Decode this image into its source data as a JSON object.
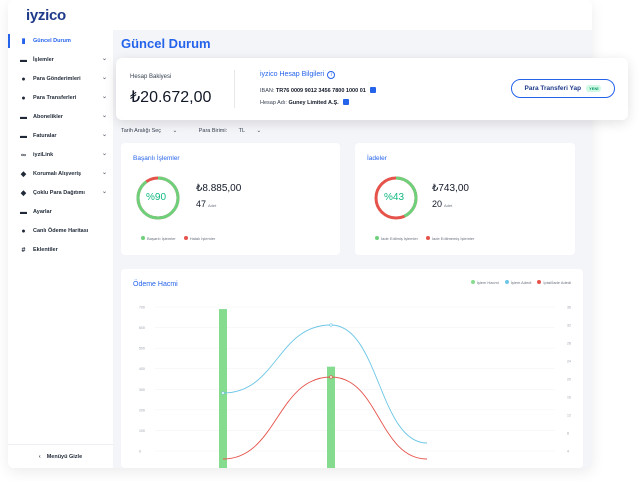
{
  "brand": {
    "logo_text": "iyzico"
  },
  "sidebar": {
    "items": [
      {
        "label": "Güncel Durum",
        "icon": "bar-chart-icon",
        "active": true,
        "has_chevron": false
      },
      {
        "label": "İşlemler",
        "icon": "card-icon",
        "active": false,
        "has_chevron": true
      },
      {
        "label": "Para Gönderimleri",
        "icon": "send-money-icon",
        "active": false,
        "has_chevron": true
      },
      {
        "label": "Para Transferleri",
        "icon": "transfer-icon",
        "active": false,
        "has_chevron": true
      },
      {
        "label": "Abonelikler",
        "icon": "subscription-icon",
        "active": false,
        "has_chevron": true
      },
      {
        "label": "Faturalar",
        "icon": "invoice-icon",
        "active": false,
        "has_chevron": true
      },
      {
        "label": "iyziLink",
        "icon": "link-icon",
        "active": false,
        "has_chevron": true
      },
      {
        "label": "Korumalı Alışveriş",
        "icon": "shield-icon",
        "active": false,
        "has_chevron": true
      },
      {
        "label": "Çoklu Para Dağıtımı",
        "icon": "distribution-icon",
        "active": false,
        "has_chevron": true
      },
      {
        "label": "Ayarlar",
        "icon": "settings-icon",
        "active": false,
        "has_chevron": false
      },
      {
        "label": "Canlı Ödeme Haritası",
        "icon": "map-pin-icon",
        "active": false,
        "has_chevron": false
      },
      {
        "label": "Eklentiler",
        "icon": "plugin-icon",
        "active": false,
        "has_chevron": false
      }
    ],
    "hide_menu_label": "Menüyü Gizle"
  },
  "page": {
    "title": "Güncel Durum"
  },
  "balance": {
    "label": "Hesap Bakiyesi",
    "value": "₺20.672,00"
  },
  "bank": {
    "title": "iyzico Hesap Bilgileri",
    "iban_label": "IBAN:",
    "iban_value": "TR76 0009 9012 3456 7800 1000 01",
    "account_label": "Hesap Adı:",
    "account_value": "Guney Limited A.Ş."
  },
  "transfer_button": {
    "label": "Para Transferi Yap",
    "badge": "YENİ"
  },
  "filters": {
    "date_range": "Tarih Aralığı Seç",
    "currency_label": "Para Birimi:",
    "currency_value": "TL"
  },
  "successful_card": {
    "title": "Başarılı İşlemler",
    "percent_label": "%90",
    "percent": 0.9,
    "amount": "₺8.885,00",
    "count": "47",
    "count_unit": "Adet",
    "legend": [
      "Başarılı İşlemler",
      "Hatalı İşlemler"
    ],
    "colors": {
      "success": "#6ed07a",
      "fail": "#e5534b"
    }
  },
  "refunds_card": {
    "title": "İadeler",
    "percent_label": "%43",
    "percent": 0.43,
    "amount": "₺743,00",
    "count": "20",
    "count_unit": "Adet",
    "legend": [
      "İade Edilmiş İşlemler",
      "İade Edilmemiş İşlemler"
    ],
    "colors": {
      "refunded": "#6ed07a",
      "not_refunded": "#e5534b"
    }
  },
  "chart_data": {
    "type": "line",
    "title": "Ödeme Hacmi",
    "legend": [
      "İşlem Hacmi",
      "İşlem Adedi",
      "İptal/İade Adedi"
    ],
    "colors": [
      "#86dc8e",
      "#6ec6e6",
      "#e5534b"
    ],
    "left_ticks": [
      "700",
      "600",
      "500",
      "400",
      "300",
      "200",
      "100",
      "0"
    ],
    "right_ticks": [
      "36",
      "32",
      "28",
      "24",
      "20",
      "16",
      "12",
      "8",
      "4"
    ],
    "bars": {
      "name": "İşlem Hacmi",
      "x": [
        0.17,
        0.44
      ],
      "values": [
        690,
        410
      ]
    },
    "series": [
      {
        "name": "İşlem Adedi",
        "points": [
          [
            0.17,
            14.5
          ],
          [
            0.44,
            31.5
          ],
          [
            0.68,
            2
          ]
        ]
      },
      {
        "name": "İptal/İade Adedi",
        "points": [
          [
            0.17,
            -2
          ],
          [
            0.44,
            18.5
          ],
          [
            0.68,
            -2
          ]
        ]
      }
    ],
    "ylim_left": [
      0,
      700
    ],
    "ylim_right": [
      0,
      36
    ]
  }
}
